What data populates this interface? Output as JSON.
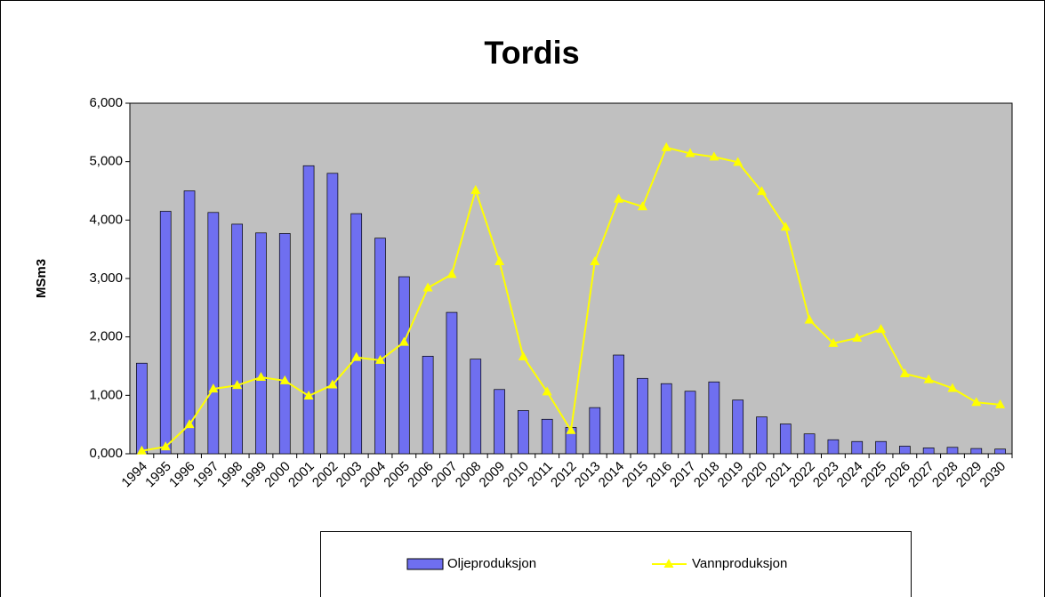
{
  "chart_data": {
    "type": "bar",
    "title": "Tordis",
    "y_label": "MSm3",
    "categories": [
      "1994",
      "1995",
      "1996",
      "1997",
      "1998",
      "1999",
      "2000",
      "2001",
      "2002",
      "2003",
      "2004",
      "2005",
      "2006",
      "2007",
      "2008",
      "2009",
      "2010",
      "2011",
      "2012",
      "2013",
      "2014",
      "2015",
      "2016",
      "2017",
      "2018",
      "2019",
      "2020",
      "2021",
      "2022",
      "2023",
      "2024",
      "2025",
      "2026",
      "2027",
      "2028",
      "2029",
      "2030"
    ],
    "series": [
      {
        "name": "Oljeproduksjon",
        "type": "bar",
        "color": "#6f6ff0",
        "values": [
          1550,
          4150,
          4500,
          4130,
          3930,
          3780,
          3770,
          4930,
          4800,
          4110,
          3690,
          3030,
          1670,
          2420,
          1620,
          1100,
          740,
          590,
          450,
          790,
          1690,
          1290,
          1200,
          1070,
          1230,
          920,
          630,
          510,
          340,
          240,
          210,
          210,
          130,
          100,
          110,
          90,
          80
        ]
      },
      {
        "name": "Vannproduksjon",
        "type": "line",
        "color": "#ffff00",
        "values": [
          50,
          120,
          500,
          1110,
          1170,
          1310,
          1250,
          990,
          1180,
          1650,
          1600,
          1910,
          2840,
          3070,
          4510,
          3290,
          1660,
          1060,
          400,
          3290,
          4360,
          4230,
          5240,
          5140,
          5080,
          4990,
          4490,
          3880,
          2290,
          1890,
          1980,
          2130,
          1370,
          1270,
          1120,
          880,
          840
        ]
      }
    ],
    "ylim": [
      0,
      6000
    ],
    "yticks": [
      {
        "value": 0,
        "label": "0,000"
      },
      {
        "value": 1000,
        "label": "1,000"
      },
      {
        "value": 2000,
        "label": "2,000"
      },
      {
        "value": 3000,
        "label": "3,000"
      },
      {
        "value": 4000,
        "label": "4,000"
      },
      {
        "value": 5000,
        "label": "5,000"
      },
      {
        "value": 6000,
        "label": "6,000"
      }
    ],
    "grid": false,
    "background": "#c0c0c0"
  }
}
